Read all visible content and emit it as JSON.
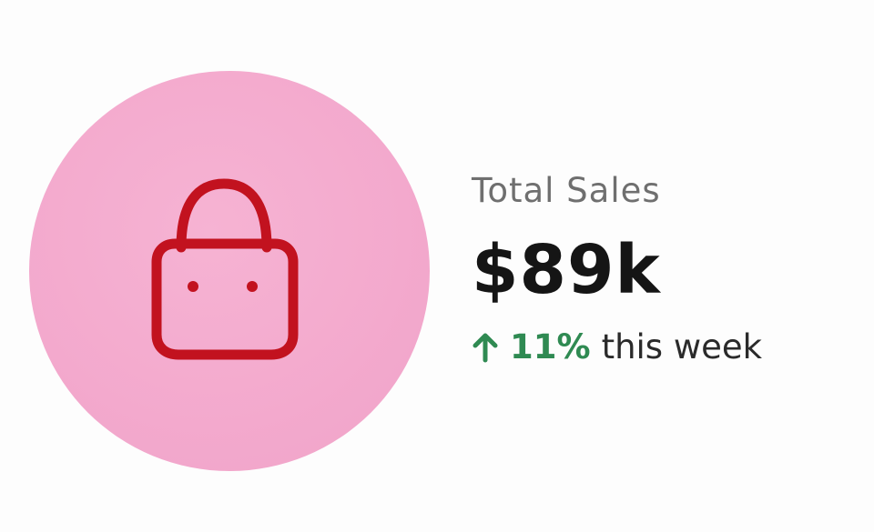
{
  "stat_card": {
    "icon": "shopping-bag-icon",
    "label": "Total Sales",
    "value": "$89k",
    "change": {
      "direction": "up",
      "percent": "11%",
      "period": "this week"
    }
  },
  "colors": {
    "icon_circle": "#f3a9cd",
    "icon_stroke": "#c2121f",
    "positive": "#2f8a52",
    "value_text": "#151515",
    "label_text": "#6f6f6f"
  }
}
